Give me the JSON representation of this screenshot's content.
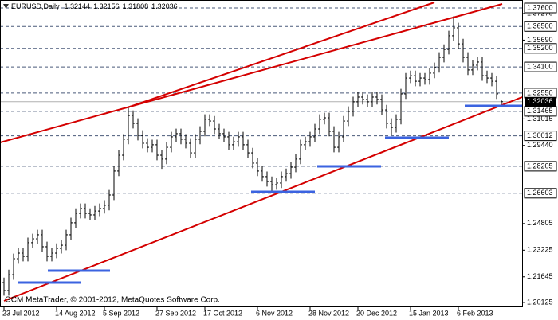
{
  "chart_data": {
    "type": "ohlc",
    "title": "EURUSD,Daily",
    "watermark": "GCM MetaTrader, © 2001-2012, MetaQuotes Software Corp.",
    "color": "#000000",
    "level_color": "#4a5a7a",
    "categories": [
      "23 Jul 2012",
      null,
      null,
      null,
      null,
      null,
      null,
      null,
      null,
      null,
      null,
      "14 Aug 2012",
      null,
      null,
      null,
      null,
      null,
      null,
      null,
      null,
      null,
      "5 Sep 2012",
      null,
      null,
      null,
      null,
      null,
      null,
      null,
      null,
      null,
      null,
      "27 Sep 2012",
      null,
      null,
      null,
      null,
      null,
      null,
      null,
      null,
      null,
      "17 Oct 2012",
      null,
      null,
      null,
      null,
      null,
      null,
      null,
      null,
      null,
      null,
      "6 Nov 2012",
      null,
      null,
      null,
      null,
      null,
      null,
      null,
      null,
      null,
      null,
      "28 Nov 2012",
      null,
      null,
      null,
      null,
      null,
      null,
      null,
      null,
      null,
      "20 Dec 2012",
      null,
      null,
      null,
      null,
      null,
      null,
      null,
      null,
      null,
      null,
      "15 Jan 2013",
      null,
      null,
      null,
      null,
      null,
      null,
      null,
      null,
      null,
      "6 Feb 2013",
      null,
      null,
      null,
      null,
      null,
      null,
      null,
      null,
      null
    ],
    "open": [
      1.213,
      1.2083,
      1.2177,
      1.2272,
      1.2305,
      1.2286,
      1.2367,
      1.239,
      1.2414,
      1.2343,
      1.2286,
      1.2305,
      1.2333,
      1.2352,
      1.2414,
      1.2485,
      1.2541,
      1.257,
      1.2541,
      1.2532,
      1.2555,
      1.257,
      1.2589,
      1.265,
      1.2792,
      1.2886,
      1.2981,
      1.3122,
      1.3075,
      1.3004,
      1.2957,
      1.2933,
      1.2948,
      1.2886,
      1.2863,
      1.2933,
      1.2995,
      1.3014,
      1.2981,
      1.2957,
      1.29,
      1.2981,
      1.3028,
      1.3099,
      1.3089,
      1.3042,
      1.3014,
      1.2995,
      1.2948,
      1.2966,
      1.2995,
      1.2948,
      1.29,
      1.2839,
      1.2792,
      1.2759,
      1.273,
      1.2711,
      1.2721,
      1.2759,
      1.2777,
      1.2815,
      1.2863,
      1.2948,
      1.2966,
      1.2995,
      1.3042,
      1.3099,
      1.3108,
      1.3028,
      1.2933,
      1.2995,
      1.3089,
      1.3146,
      1.3203,
      1.3231,
      1.3217,
      1.3203,
      1.3231,
      1.3217,
      1.3155,
      1.3075,
      1.3051,
      1.3099,
      1.325,
      1.3344,
      1.3358,
      1.3325,
      1.3344,
      1.3335,
      1.3373,
      1.3406,
      1.3467,
      1.3514,
      1.3595,
      1.3642,
      1.3547,
      1.3467,
      1.3392,
      1.342,
      1.3439,
      1.3358,
      1.3344,
      1.3325,
      1.32144
    ],
    "high": [
      1.216,
      1.2207,
      1.2302,
      1.2335,
      1.2335,
      1.2397,
      1.242,
      1.2444,
      1.2444,
      1.2373,
      1.2335,
      1.2363,
      1.2382,
      1.2444,
      1.2515,
      1.2571,
      1.26,
      1.26,
      1.2571,
      1.2585,
      1.26,
      1.2619,
      1.268,
      1.2822,
      1.2916,
      1.3011,
      1.317,
      1.3152,
      1.3105,
      1.3034,
      1.2987,
      1.2978,
      1.2978,
      1.2916,
      1.2963,
      1.3025,
      1.3044,
      1.3044,
      1.3011,
      1.2987,
      1.3011,
      1.3058,
      1.3129,
      1.3129,
      1.3119,
      1.3072,
      1.3044,
      1.3025,
      1.2996,
      1.3025,
      1.3025,
      1.2978,
      1.293,
      1.2869,
      1.2822,
      1.2789,
      1.276,
      1.2751,
      1.2789,
      1.2807,
      1.2845,
      1.2893,
      1.2978,
      1.2996,
      1.3025,
      1.3072,
      1.3129,
      1.3138,
      1.3138,
      1.3058,
      1.3025,
      1.3119,
      1.3176,
      1.3233,
      1.3261,
      1.3261,
      1.3247,
      1.3261,
      1.3261,
      1.3247,
      1.3185,
      1.3105,
      1.3129,
      1.328,
      1.3374,
      1.3388,
      1.3388,
      1.3374,
      1.3374,
      1.3403,
      1.3436,
      1.3497,
      1.3544,
      1.3625,
      1.3711,
      1.3672,
      1.3577,
      1.3497,
      1.345,
      1.3469,
      1.3469,
      1.3388,
      1.3374,
      1.3355,
      1.32156
    ],
    "low": [
      1.2053,
      1.2053,
      1.2147,
      1.2242,
      1.2256,
      1.2256,
      1.2337,
      1.236,
      1.2313,
      1.2256,
      1.2256,
      1.2275,
      1.2303,
      1.2322,
      1.2384,
      1.2455,
      1.2511,
      1.2511,
      1.2502,
      1.2502,
      1.2525,
      1.254,
      1.2559,
      1.262,
      1.2762,
      1.2856,
      1.2951,
      1.3045,
      1.2974,
      1.2927,
      1.2903,
      1.2903,
      1.2856,
      1.2805,
      1.2833,
      1.2903,
      1.2965,
      1.2951,
      1.2927,
      1.287,
      1.287,
      1.2951,
      1.2998,
      1.3059,
      1.3012,
      1.2984,
      1.2965,
      1.2918,
      1.2918,
      1.2936,
      1.2918,
      1.287,
      1.2809,
      1.2762,
      1.2729,
      1.27,
      1.2662,
      1.2681,
      1.2691,
      1.2729,
      1.2747,
      1.2785,
      1.2833,
      1.2918,
      1.2936,
      1.2965,
      1.3012,
      1.3069,
      1.2998,
      1.2903,
      1.2903,
      1.2965,
      1.3059,
      1.3116,
      1.3173,
      1.3187,
      1.3173,
      1.3173,
      1.3187,
      1.3125,
      1.3045,
      1.3005,
      1.3021,
      1.3069,
      1.322,
      1.3314,
      1.3295,
      1.3295,
      1.3305,
      1.3305,
      1.3343,
      1.3376,
      1.3437,
      1.3484,
      1.3565,
      1.3517,
      1.3437,
      1.3362,
      1.3362,
      1.339,
      1.3328,
      1.3314,
      1.3295,
      1.322,
      1.31808
    ],
    "close": [
      1.2083,
      1.2177,
      1.2272,
      1.2305,
      1.2286,
      1.2367,
      1.239,
      1.2414,
      1.2343,
      1.2286,
      1.2305,
      1.2333,
      1.2352,
      1.2414,
      1.2485,
      1.2541,
      1.257,
      1.2541,
      1.2532,
      1.2555,
      1.257,
      1.2589,
      1.265,
      1.2792,
      1.2886,
      1.2981,
      1.3122,
      1.3075,
      1.3004,
      1.2957,
      1.2933,
      1.2948,
      1.2886,
      1.2863,
      1.2933,
      1.2995,
      1.3014,
      1.2981,
      1.2957,
      1.29,
      1.2981,
      1.3028,
      1.3099,
      1.3089,
      1.3042,
      1.3014,
      1.2995,
      1.2948,
      1.2966,
      1.2995,
      1.2948,
      1.29,
      1.2839,
      1.2792,
      1.2759,
      1.273,
      1.2711,
      1.2721,
      1.2759,
      1.2777,
      1.2815,
      1.2863,
      1.2948,
      1.2966,
      1.2995,
      1.3042,
      1.3099,
      1.3108,
      1.3028,
      1.2933,
      1.2995,
      1.3089,
      1.3146,
      1.3203,
      1.3231,
      1.3217,
      1.3203,
      1.3231,
      1.3217,
      1.3155,
      1.3075,
      1.3051,
      1.3099,
      1.325,
      1.3344,
      1.3358,
      1.3325,
      1.3344,
      1.3335,
      1.3373,
      1.3406,
      1.3467,
      1.3514,
      1.3595,
      1.3642,
      1.3547,
      1.3467,
      1.3392,
      1.342,
      1.3439,
      1.3358,
      1.3344,
      1.3325,
      1.325,
      1.32036
    ],
    "ylim": [
      1.19886,
      1.38072
    ],
    "yticks": [
      {
        "value": 1.3727,
        "label": "1.37270"
      },
      {
        "value": 1.3569,
        "label": "1.35690"
      },
      1.31015,
      {
        "value": 1.2944,
        "label": "1.29440"
      },
      1.24805,
      1.23225,
      1.21645,
      1.20125
    ],
    "levels": [
      {
        "value": 1.376,
        "label": "1.37600"
      },
      {
        "value": 1.365,
        "label": "1.36500"
      },
      {
        "value": 1.352,
        "label": "1.35200"
      },
      {
        "value": 1.341,
        "label": "1.34100"
      },
      {
        "value": 1.3255,
        "label": "1.32550"
      },
      1.31465,
      1.30012,
      1.28205,
      1.26603
    ]
  }
}
